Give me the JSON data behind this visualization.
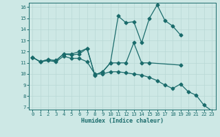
{
  "xlabel": "Humidex (Indice chaleur)",
  "bg_color": "#cde8e5",
  "line_color": "#1a6b6b",
  "grid_color": "#b8d8d5",
  "x_min": -0.5,
  "x_max": 23.5,
  "y_min": 6.8,
  "y_max": 16.4,
  "line1_x": [
    0,
    1,
    2,
    3,
    4,
    5,
    6,
    7,
    8,
    9,
    10,
    11,
    12,
    13,
    14,
    15,
    16,
    17,
    18,
    19
  ],
  "line1_y": [
    11.5,
    11.1,
    11.3,
    11.2,
    11.8,
    11.8,
    12.0,
    12.3,
    9.9,
    10.2,
    11.0,
    15.2,
    14.6,
    14.7,
    12.8,
    15.0,
    16.2,
    14.8,
    14.3,
    13.5
  ],
  "line2_x": [
    0,
    1,
    2,
    3,
    4,
    5,
    6,
    7,
    8,
    9,
    10,
    11,
    12,
    13,
    14,
    15,
    19
  ],
  "line2_y": [
    11.5,
    11.1,
    11.3,
    11.2,
    11.8,
    11.7,
    11.8,
    12.3,
    9.9,
    10.2,
    11.0,
    11.0,
    11.0,
    12.8,
    11.0,
    11.0,
    10.8
  ],
  "line3_x": [
    0,
    1,
    2,
    3,
    4,
    5,
    6,
    7,
    8,
    9,
    10,
    11,
    12,
    13,
    14,
    15,
    16,
    17,
    18,
    19,
    20,
    21,
    22,
    23
  ],
  "line3_y": [
    11.5,
    11.1,
    11.2,
    11.1,
    11.6,
    11.4,
    11.4,
    11.1,
    10.0,
    10.0,
    10.2,
    10.2,
    10.1,
    10.0,
    9.9,
    9.7,
    9.4,
    9.0,
    8.7,
    9.1,
    8.4,
    8.1,
    7.2,
    6.7
  ],
  "yticks": [
    7,
    8,
    9,
    10,
    11,
    12,
    13,
    14,
    15,
    16
  ],
  "xticks": [
    0,
    1,
    2,
    3,
    4,
    5,
    6,
    7,
    8,
    9,
    10,
    11,
    12,
    13,
    14,
    15,
    16,
    17,
    18,
    19,
    20,
    21,
    22,
    23
  ]
}
